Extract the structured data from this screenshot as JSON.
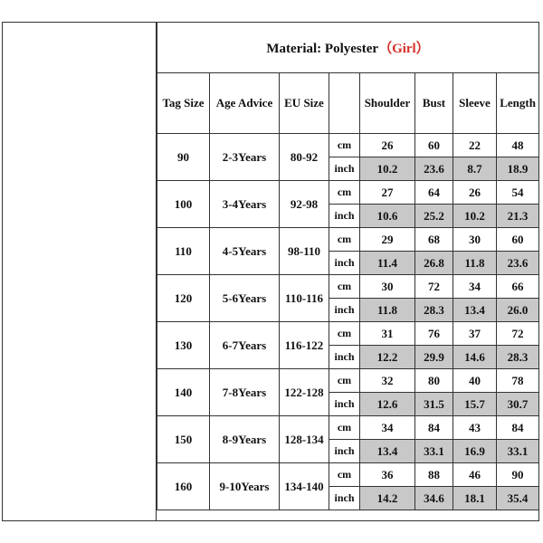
{
  "title": {
    "prefix": "Material: Polyester",
    "accent": "（Girl）"
  },
  "headers": {
    "tag_size": "Tag Size",
    "age_advice": "Age Advice",
    "eu_size": "EU Size",
    "unit": "",
    "shoulder": "Shoulder",
    "bust": "Bust",
    "sleeve": "Sleeve",
    "length": "Length"
  },
  "units": {
    "cm": "cm",
    "inch": "inch"
  },
  "rows": [
    {
      "tag": "90",
      "age": "2-3Years",
      "eu": "80-92",
      "cm": [
        "26",
        "60",
        "22",
        "48"
      ],
      "inch": [
        "10.2",
        "23.6",
        "8.7",
        "18.9"
      ]
    },
    {
      "tag": "100",
      "age": "3-4Years",
      "eu": "92-98",
      "cm": [
        "27",
        "64",
        "26",
        "54"
      ],
      "inch": [
        "10.6",
        "25.2",
        "10.2",
        "21.3"
      ]
    },
    {
      "tag": "110",
      "age": "4-5Years",
      "eu": "98-110",
      "cm": [
        "29",
        "68",
        "30",
        "60"
      ],
      "inch": [
        "11.4",
        "26.8",
        "11.8",
        "23.6"
      ]
    },
    {
      "tag": "120",
      "age": "5-6Years",
      "eu": "110-116",
      "cm": [
        "30",
        "72",
        "34",
        "66"
      ],
      "inch": [
        "11.8",
        "28.3",
        "13.4",
        "26.0"
      ]
    },
    {
      "tag": "130",
      "age": "6-7Years",
      "eu": "116-122",
      "cm": [
        "31",
        "76",
        "37",
        "72"
      ],
      "inch": [
        "12.2",
        "29.9",
        "14.6",
        "28.3"
      ]
    },
    {
      "tag": "140",
      "age": "7-8Years",
      "eu": "122-128",
      "cm": [
        "32",
        "80",
        "40",
        "78"
      ],
      "inch": [
        "12.6",
        "31.5",
        "15.7",
        "30.7"
      ]
    },
    {
      "tag": "150",
      "age": "8-9Years",
      "eu": "128-134",
      "cm": [
        "34",
        "84",
        "43",
        "84"
      ],
      "inch": [
        "13.4",
        "33.1",
        "16.9",
        "33.1"
      ]
    },
    {
      "tag": "160",
      "age": "9-10Years",
      "eu": "134-140",
      "cm": [
        "36",
        "88",
        "46",
        "90"
      ],
      "inch": [
        "14.2",
        "34.6",
        "18.1",
        "35.4"
      ]
    }
  ]
}
